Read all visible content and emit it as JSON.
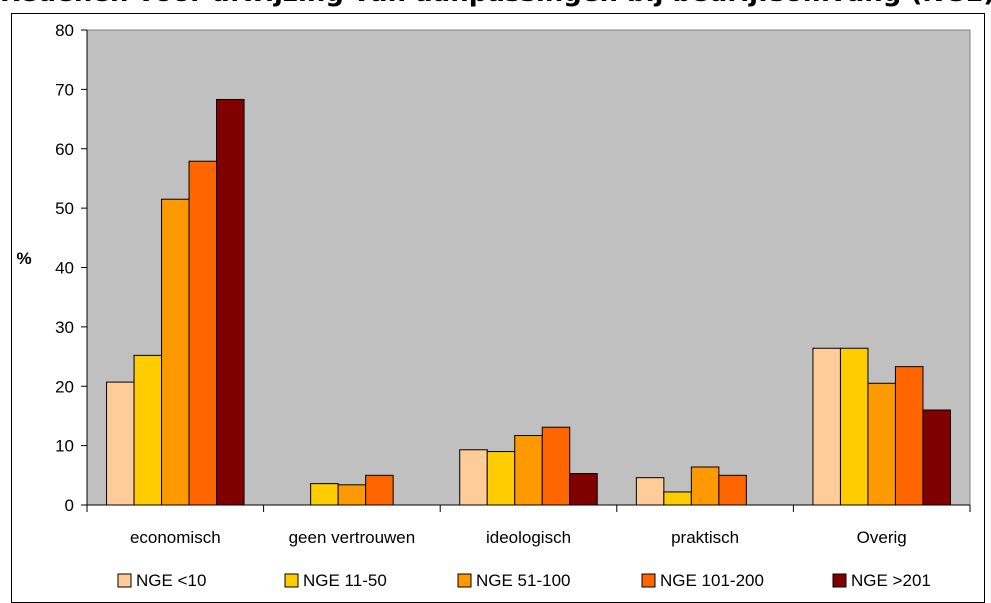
{
  "chart_data": {
    "type": "bar",
    "title": "Redenen voor afwijzing van aanpassingen bij bedrijfsomvang (NGE)",
    "xlabel": "",
    "ylabel": "%",
    "ylim": [
      0,
      80
    ],
    "yticks": [
      0,
      10,
      20,
      30,
      40,
      50,
      60,
      70,
      80
    ],
    "grid": false,
    "legend": "bottom",
    "categories": [
      "economisch",
      "geen vertrouwen",
      "ideologisch",
      "praktisch",
      "Overig"
    ],
    "series": [
      {
        "name": "NGE <10",
        "color": "#FFCC99",
        "values": [
          20.7,
          0,
          9.3,
          4.6,
          26.4
        ]
      },
      {
        "name": "NGE 11-50",
        "color": "#FFCC00",
        "values": [
          25.2,
          3.6,
          9.0,
          2.2,
          26.4
        ]
      },
      {
        "name": "NGE 51-100",
        "color": "#FF9900",
        "values": [
          51.5,
          3.4,
          11.7,
          6.4,
          20.5
        ]
      },
      {
        "name": "NGE 101-200",
        "color": "#FF6600",
        "values": [
          57.9,
          5.0,
          13.1,
          5.0,
          23.3
        ]
      },
      {
        "name": "NGE >201",
        "color": "#800000",
        "values": [
          68.3,
          0,
          5.3,
          0,
          16.0
        ]
      }
    ],
    "plot_background": "#C0C0C0"
  }
}
